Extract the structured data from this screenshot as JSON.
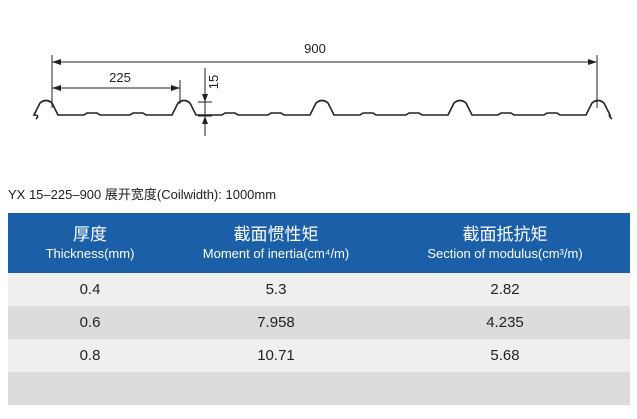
{
  "drawing": {
    "total_width": "900",
    "pitch": "225",
    "rib_height": "15"
  },
  "caption": "YX 15–225–900  展开宽度(Coilwidth): 1000mm",
  "table": {
    "headers": [
      {
        "zh": "厚度",
        "en": "Thickness(mm)"
      },
      {
        "zh": "截面惯性矩",
        "en": "Moment of inertia(cm⁴/m)"
      },
      {
        "zh": "截面抵抗矩",
        "en": "Section of modulus(cm³/m)"
      }
    ],
    "rows": [
      [
        "0.4",
        "5.3",
        "2.82"
      ],
      [
        "0.6",
        "7.958",
        "4.235"
      ],
      [
        "0.8",
        "10.71",
        "5.68"
      ]
    ]
  }
}
